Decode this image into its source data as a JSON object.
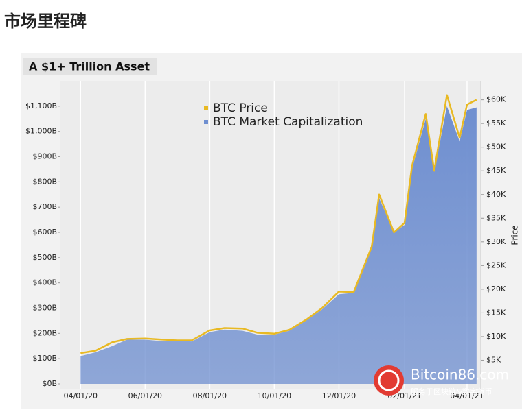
{
  "header": {
    "title": "市场里程碑"
  },
  "chart_data": {
    "type": "area",
    "title": "A $1+ Trillion Asset",
    "y2label": "Price",
    "x": [
      "04/01/20",
      "04/15/20",
      "05/01/20",
      "05/15/20",
      "06/01/20",
      "06/15/20",
      "07/01/20",
      "07/15/20",
      "08/01/20",
      "08/15/20",
      "09/01/20",
      "09/15/20",
      "10/01/20",
      "10/15/20",
      "11/01/20",
      "11/15/20",
      "12/01/20",
      "12/15/20",
      "01/01/21",
      "01/08/21",
      "01/22/21",
      "02/01/21",
      "02/08/21",
      "02/21/21",
      "03/01/21",
      "03/13/21",
      "03/25/21",
      "04/01/21",
      "04/10/21"
    ],
    "series": [
      {
        "name": "BTC Price",
        "color": "#e8b923",
        "axis": "y2",
        "values": [
          6.5,
          7,
          8.8,
          9.5,
          9.6,
          9.4,
          9.2,
          9.2,
          11.3,
          11.8,
          11.7,
          10.8,
          10.6,
          11.4,
          13.7,
          16,
          19.5,
          19.4,
          29,
          40,
          32,
          34,
          46,
          57,
          45,
          61,
          52,
          59,
          60
        ]
      },
      {
        "name": "BTC Market Capitalization",
        "color": "#6f8fd0",
        "values": [
          110,
          125,
          150,
          175,
          175,
          170,
          170,
          168,
          205,
          215,
          210,
          195,
          195,
          210,
          255,
          295,
          355,
          360,
          540,
          735,
          600,
          630,
          850,
          1050,
          840,
          1100,
          960,
          1085,
          1095
        ]
      }
    ],
    "xlim": [
      "03/13/20",
      "04/14/21"
    ],
    "xticks": [
      "04/01/20",
      "06/01/20",
      "08/01/20",
      "10/01/20",
      "12/01/20",
      "02/01/21",
      "04/01/21"
    ],
    "ylim": [
      0,
      1200
    ],
    "yticks": [
      {
        "value": 0,
        "label": "$0B"
      },
      {
        "value": 100,
        "label": "$100B"
      },
      {
        "value": 200,
        "label": "$200B"
      },
      {
        "value": 300,
        "label": "$300B"
      },
      {
        "value": 400,
        "label": "$400B"
      },
      {
        "value": 500,
        "label": "$500B"
      },
      {
        "value": 600,
        "label": "$600B"
      },
      {
        "value": 700,
        "label": "$700B"
      },
      {
        "value": 800,
        "label": "$800B"
      },
      {
        "value": 900,
        "label": "$900B"
      },
      {
        "value": 1000,
        "label": "$1,000B"
      },
      {
        "value": 1100,
        "label": "$1,100B"
      }
    ],
    "y2lim": [
      0,
      64
    ],
    "y2ticks": [
      {
        "value": 5,
        "label": "$5K"
      },
      {
        "value": 10,
        "label": "$10K"
      },
      {
        "value": 15,
        "label": "$15K"
      },
      {
        "value": 20,
        "label": "$20K"
      },
      {
        "value": 25,
        "label": "$25K"
      },
      {
        "value": 30,
        "label": "$30K"
      },
      {
        "value": 35,
        "label": "$35K"
      },
      {
        "value": 40,
        "label": "$40K"
      },
      {
        "value": 45,
        "label": "$45K"
      },
      {
        "value": 50,
        "label": "$50K"
      },
      {
        "value": 55,
        "label": "$55K"
      },
      {
        "value": 60,
        "label": "$60K"
      }
    ],
    "grid": true
  },
  "watermark": {
    "name": "Bitcoin86.com",
    "tagline": "服务于区块链&数字货币"
  }
}
